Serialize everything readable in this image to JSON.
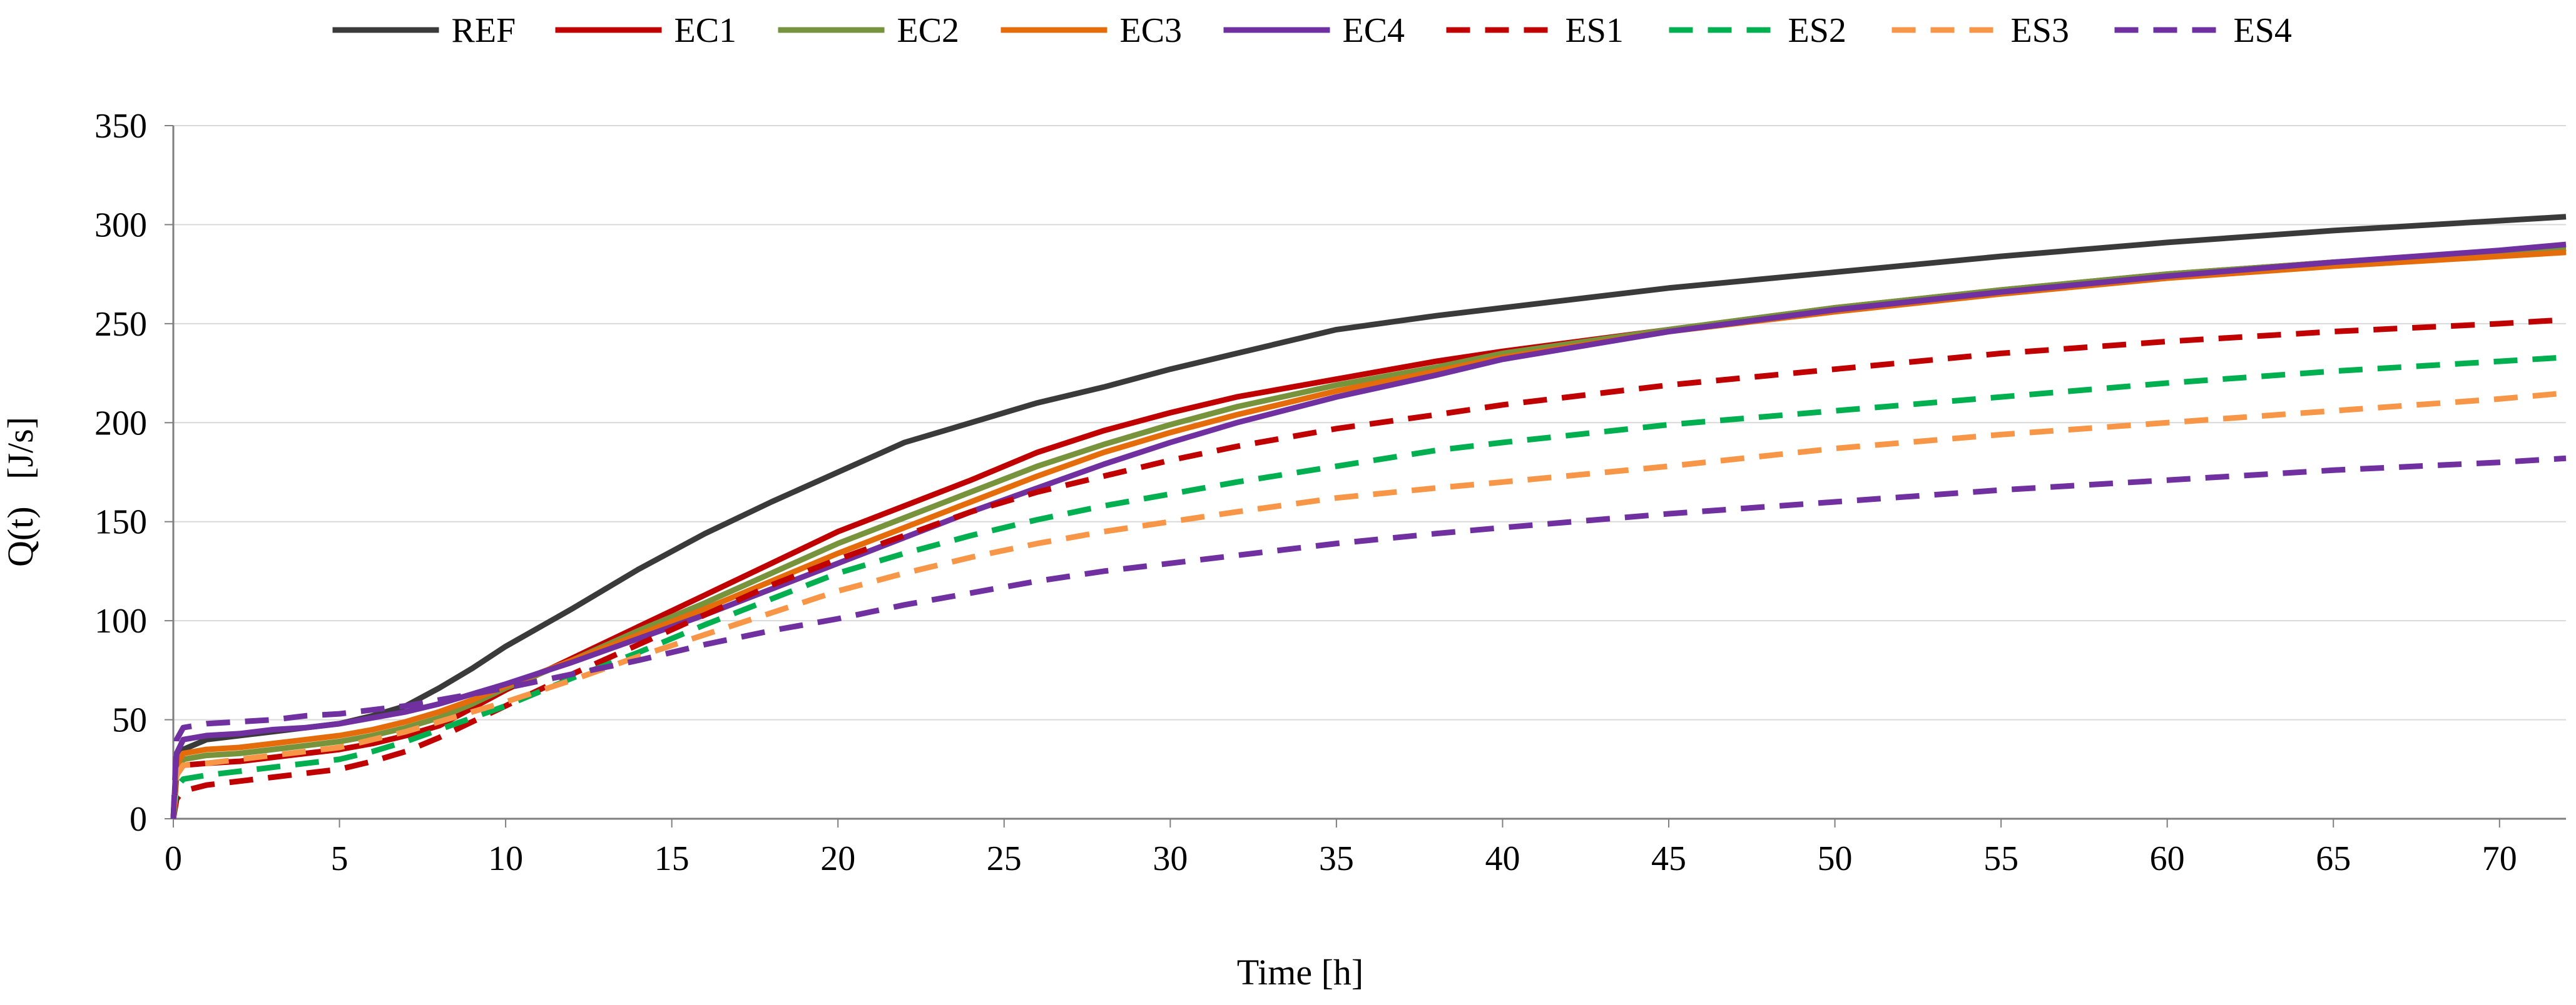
{
  "chart_data": {
    "type": "line",
    "title": "",
    "xlabel": "Time [h]",
    "ylabel": "Q(t)   [J/s]",
    "xlim": [
      0,
      72
    ],
    "ylim": [
      0,
      350
    ],
    "xticks": [
      0,
      5,
      10,
      15,
      20,
      25,
      30,
      35,
      40,
      45,
      50,
      55,
      60,
      65,
      70
    ],
    "yticks": [
      0,
      50,
      100,
      150,
      200,
      250,
      300,
      350
    ],
    "grid": "horizontal",
    "legend": "top",
    "series": [
      {
        "name": "REF",
        "color": "#3a3a3a",
        "dash": "solid",
        "x": [
          0,
          0.1,
          0.3,
          1,
          2,
          3,
          4,
          5,
          6,
          7,
          8,
          9,
          10,
          12,
          14,
          16,
          18,
          20,
          22,
          24,
          26,
          28,
          30,
          32,
          35,
          38,
          40,
          45,
          50,
          55,
          60,
          65,
          70,
          72
        ],
        "y": [
          0,
          28,
          35,
          40,
          42,
          44,
          46,
          48,
          52,
          57,
          66,
          76,
          87,
          106,
          126,
          144,
          160,
          175,
          190,
          200,
          210,
          218,
          227,
          235,
          247,
          254,
          258,
          268,
          276,
          284,
          291,
          297,
          302,
          304
        ]
      },
      {
        "name": "EC1",
        "color": "#c00000",
        "dash": "solid",
        "x": [
          0,
          0.1,
          0.3,
          1,
          2,
          3,
          4,
          5,
          6,
          7,
          8,
          9,
          10,
          12,
          14,
          16,
          18,
          20,
          22,
          24,
          26,
          28,
          30,
          32,
          35,
          38,
          40,
          45,
          50,
          55,
          60,
          65,
          70,
          72
        ],
        "y": [
          0,
          22,
          27,
          28,
          29,
          31,
          33,
          35,
          38,
          42,
          47,
          56,
          65,
          81,
          97,
          113,
          129,
          145,
          158,
          171,
          185,
          196,
          205,
          213,
          222,
          231,
          236,
          247,
          258,
          267,
          275,
          281,
          286,
          288
        ]
      },
      {
        "name": "EC2",
        "color": "#77933c",
        "dash": "solid",
        "x": [
          0,
          0.1,
          0.3,
          1,
          2,
          3,
          4,
          5,
          6,
          7,
          8,
          9,
          10,
          12,
          14,
          16,
          18,
          20,
          22,
          24,
          26,
          28,
          30,
          32,
          35,
          38,
          40,
          45,
          50,
          55,
          60,
          65,
          70,
          72
        ],
        "y": [
          0,
          24,
          30,
          32,
          33,
          35,
          37,
          39,
          42,
          46,
          51,
          58,
          66,
          80,
          95,
          109,
          124,
          139,
          152,
          165,
          178,
          189,
          199,
          208,
          219,
          228,
          235,
          247,
          258,
          267,
          275,
          281,
          286,
          288
        ]
      },
      {
        "name": "EC3",
        "color": "#e46c0a",
        "dash": "solid",
        "x": [
          0,
          0.1,
          0.3,
          1,
          2,
          3,
          4,
          5,
          6,
          7,
          8,
          9,
          10,
          12,
          14,
          16,
          18,
          20,
          22,
          24,
          26,
          28,
          30,
          32,
          35,
          38,
          40,
          45,
          50,
          55,
          60,
          65,
          70,
          72
        ],
        "y": [
          0,
          27,
          33,
          35,
          36,
          38,
          40,
          42,
          45,
          49,
          54,
          60,
          67,
          80,
          93,
          106,
          120,
          134,
          147,
          160,
          173,
          185,
          195,
          204,
          216,
          226,
          233,
          246,
          256,
          265,
          273,
          279,
          284,
          286
        ]
      },
      {
        "name": "EC4",
        "color": "#7030a0",
        "dash": "solid",
        "x": [
          0,
          0.1,
          0.3,
          1,
          2,
          3,
          4,
          5,
          6,
          7,
          8,
          9,
          10,
          12,
          14,
          16,
          18,
          20,
          22,
          24,
          26,
          28,
          30,
          32,
          35,
          38,
          40,
          45,
          50,
          55,
          60,
          65,
          70,
          72
        ],
        "y": [
          0,
          33,
          40,
          42,
          43,
          45,
          46,
          48,
          51,
          54,
          58,
          63,
          68,
          79,
          91,
          103,
          116,
          129,
          142,
          155,
          167,
          179,
          190,
          200,
          213,
          224,
          232,
          246,
          257,
          266,
          274,
          281,
          287,
          290
        ]
      },
      {
        "name": "ES1",
        "color": "#c00000",
        "dash": "dashed",
        "x": [
          0,
          0.1,
          0.3,
          1,
          2,
          3,
          4,
          5,
          6,
          7,
          8,
          9,
          10,
          12,
          14,
          16,
          18,
          20,
          22,
          24,
          26,
          28,
          30,
          32,
          35,
          38,
          40,
          45,
          50,
          55,
          60,
          65,
          70,
          72
        ],
        "y": [
          0,
          10,
          14,
          17,
          19,
          21,
          23,
          25,
          29,
          34,
          41,
          49,
          57,
          73,
          88,
          103,
          118,
          131,
          143,
          155,
          165,
          173,
          181,
          188,
          197,
          204,
          209,
          219,
          227,
          235,
          241,
          246,
          250,
          252
        ]
      },
      {
        "name": "ES2",
        "color": "#00b050",
        "dash": "dashed",
        "x": [
          0,
          0.1,
          0.3,
          1,
          2,
          3,
          4,
          5,
          6,
          7,
          8,
          9,
          10,
          12,
          14,
          16,
          18,
          20,
          22,
          24,
          26,
          28,
          30,
          32,
          35,
          38,
          40,
          45,
          50,
          55,
          60,
          65,
          70,
          72
        ],
        "y": [
          0,
          16,
          20,
          22,
          24,
          26,
          28,
          30,
          34,
          39,
          45,
          51,
          57,
          71,
          84,
          98,
          111,
          124,
          134,
          143,
          151,
          158,
          164,
          170,
          178,
          186,
          190,
          199,
          206,
          213,
          220,
          226,
          231,
          233
        ]
      },
      {
        "name": "ES3",
        "color": "#f79646",
        "dash": "dashed",
        "x": [
          0,
          0.1,
          0.3,
          1,
          2,
          3,
          4,
          5,
          6,
          7,
          8,
          9,
          10,
          12,
          14,
          16,
          18,
          20,
          22,
          24,
          26,
          28,
          30,
          32,
          35,
          38,
          40,
          45,
          50,
          55,
          60,
          65,
          70,
          72
        ],
        "y": [
          0,
          22,
          27,
          28,
          30,
          32,
          34,
          36,
          40,
          44,
          49,
          54,
          59,
          70,
          82,
          93,
          104,
          115,
          124,
          132,
          139,
          145,
          150,
          155,
          162,
          167,
          170,
          178,
          187,
          194,
          200,
          206,
          212,
          215
        ]
      },
      {
        "name": "ES4",
        "color": "#7030a0",
        "dash": "dashed",
        "x": [
          0,
          0.1,
          0.3,
          1,
          2,
          3,
          4,
          5,
          6,
          7,
          8,
          9,
          10,
          12,
          14,
          16,
          18,
          20,
          22,
          24,
          26,
          28,
          30,
          32,
          35,
          38,
          40,
          45,
          50,
          55,
          60,
          65,
          70,
          72
        ],
        "y": [
          0,
          40,
          46,
          48,
          49,
          50,
          52,
          53,
          55,
          57,
          60,
          63,
          66,
          73,
          80,
          88,
          95,
          101,
          108,
          114,
          120,
          125,
          129,
          133,
          139,
          144,
          147,
          154,
          160,
          166,
          171,
          176,
          180,
          182
        ]
      }
    ]
  }
}
